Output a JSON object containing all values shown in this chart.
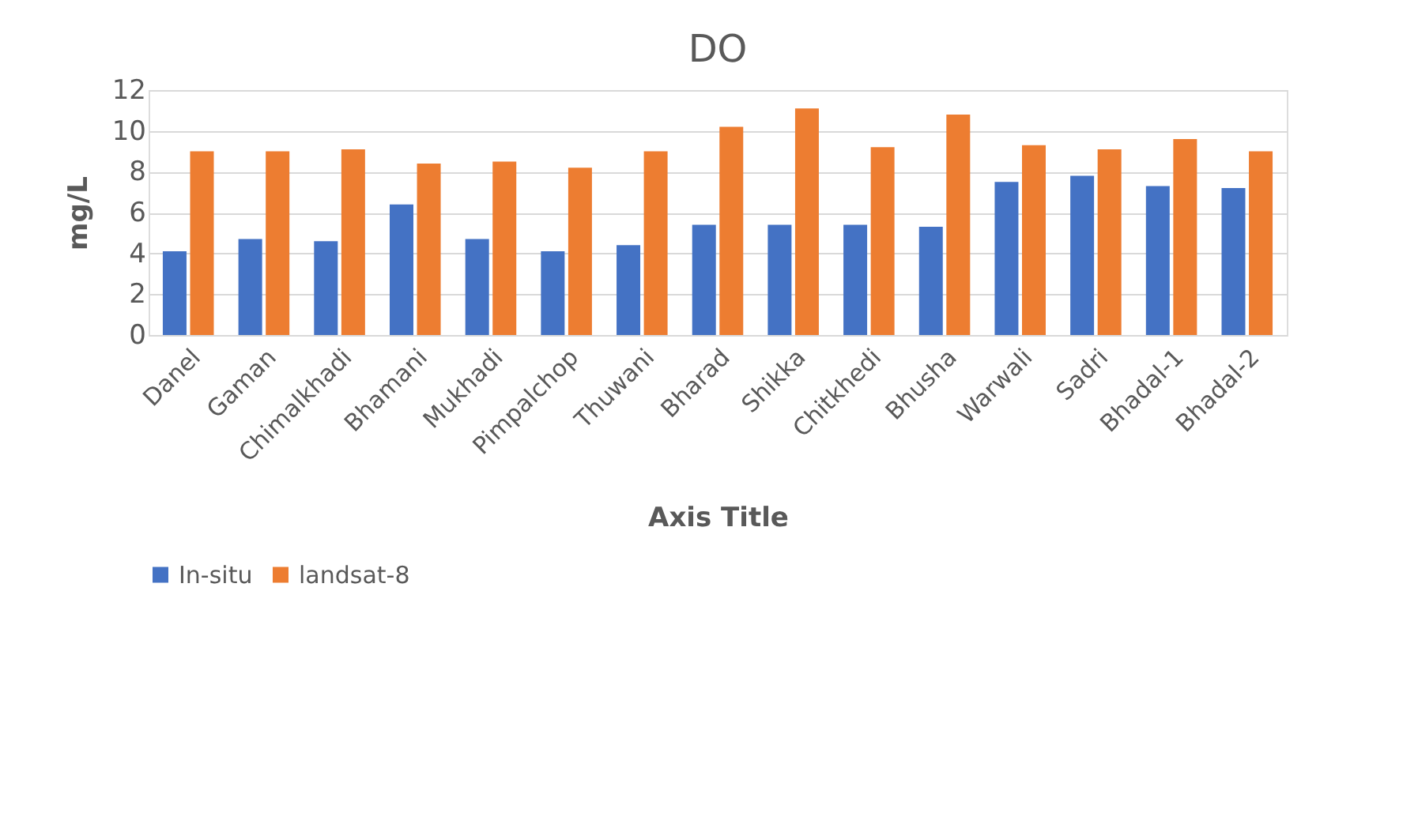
{
  "chart_data": {
    "type": "bar",
    "title": "DO",
    "xlabel": "Axis Title",
    "ylabel": "mg/L",
    "categories": [
      "Danel",
      "Gaman",
      "Chimalkhadi",
      "Bhamani",
      "Mukhadi",
      "Pimpalchop",
      "Thuwani",
      "Bharad",
      "Shikka",
      "Chitkhedi",
      "Bhusha",
      "Warwali",
      "Sadri",
      "Bhadal-1",
      "Bhadal-2"
    ],
    "series": [
      {
        "name": "In-situ",
        "color": "#4472c4",
        "values": [
          4.1,
          4.7,
          4.6,
          6.4,
          4.7,
          4.1,
          4.4,
          5.4,
          5.4,
          5.4,
          5.3,
          7.5,
          7.8,
          7.3,
          7.2
        ]
      },
      {
        "name": "landsat-8",
        "color": "#ed7d31",
        "values": [
          9.0,
          9.0,
          9.1,
          8.4,
          8.5,
          8.2,
          9.0,
          10.2,
          11.1,
          9.2,
          10.8,
          9.3,
          9.1,
          9.6,
          9.0
        ]
      }
    ],
    "ylim": [
      0,
      12
    ],
    "yticks": [
      0,
      2,
      4,
      6,
      8,
      10,
      12
    ],
    "grid": "y",
    "legend": "bottom"
  }
}
